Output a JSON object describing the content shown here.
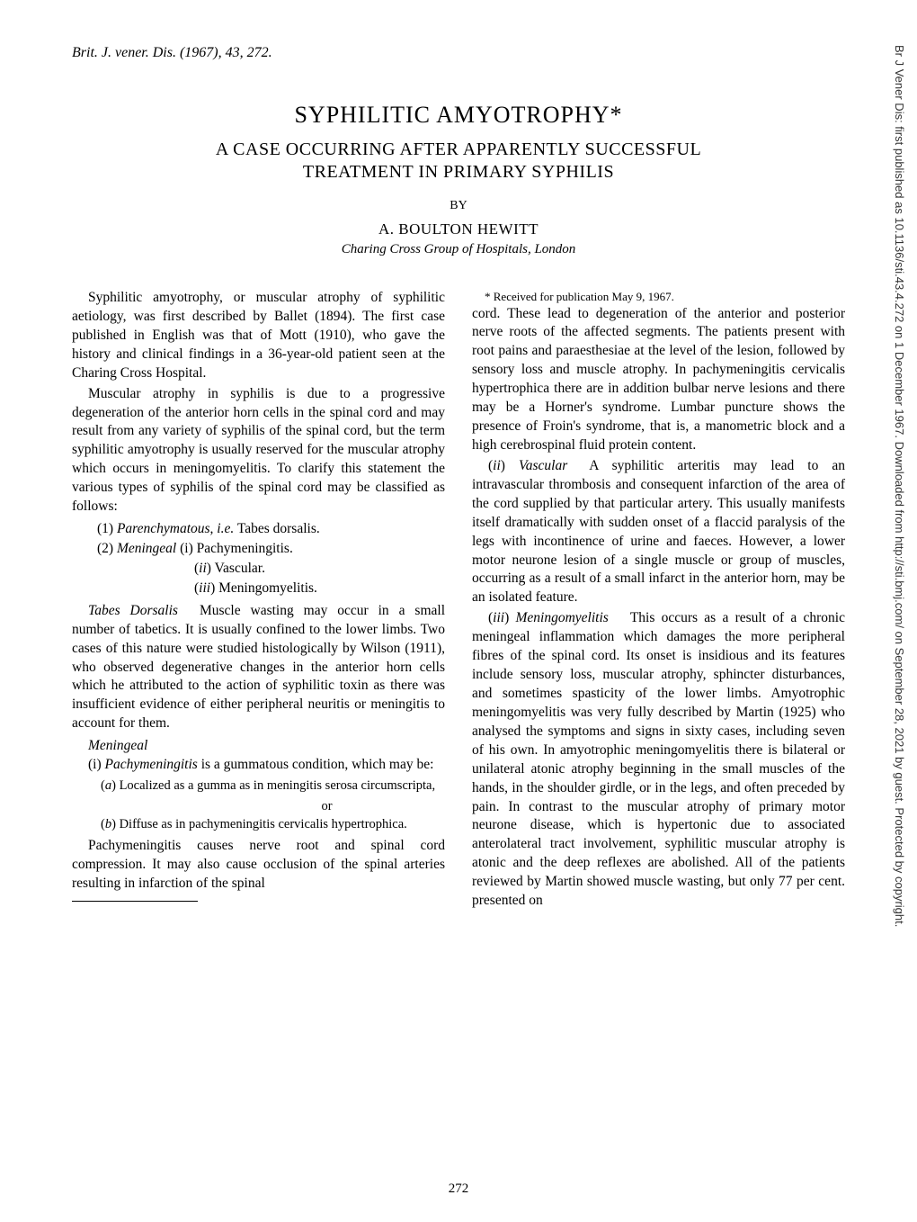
{
  "sidebar": {
    "text": "Br J Vener Dis: first published as 10.1136/sti.43.4.272 on 1 December 1967. Downloaded from http://sti.bmj.com/ on September 28, 2021 by guest. Protected by copyright."
  },
  "header": {
    "citation": "Brit. J. vener. Dis. (1967), 43, 272."
  },
  "title": {
    "main": "SYPHILITIC AMYOTROPHY*",
    "sub1": "A CASE OCCURRING AFTER APPARENTLY SUCCESSFUL",
    "sub2": "TREATMENT IN PRIMARY SYPHILIS",
    "by": "BY",
    "author": "A. BOULTON HEWITT",
    "affiliation": "Charing Cross Group of Hospitals, London"
  },
  "body": {
    "p1": "Syphilitic amyotrophy, or muscular atrophy of syphilitic aetiology, was first described by Ballet (1894). The first case published in English was that of Mott (1910), who gave the history and clinical findings in a 36-year-old patient seen at the Charing Cross Hospital.",
    "p2": "Muscular atrophy in syphilis is due to a progressive degeneration of the anterior horn cells in the spinal cord and may result from any variety of syphilis of the spinal cord, but the term syphilitic amyotrophy is usually reserved for the muscular atrophy which occurs in meningomyelitis. To clarify this statement the various types of syphilis of the spinal cord may be classified as follows:",
    "class1_prefix": "(1) ",
    "class1_italic": "Parenchymatous, i.e.",
    "class1_rest": " Tabes dorsalis.",
    "class2_prefix": "(2) ",
    "class2_italic": "Meningeal",
    "class2_rest": "   (i) Pachymeningitis.",
    "class2b_prefix": "(ii) ",
    "class2b_rest": "Vascular.",
    "class2c_prefix": "(iii) ",
    "class2c_rest": "Meningomyelitis.",
    "tabes_heading": "Tabes Dorsalis",
    "tabes_text": "Muscle wasting may occur in a small number of tabetics. It is usually confined to the lower limbs. Two cases of this nature were studied histologically by Wilson (1911), who observed degenerative changes in the anterior horn cells which he attributed to the action of syphilitic toxin as there was insufficient evidence of either peripheral neuritis or meningitis to account for them.",
    "meningeal_heading": "Meningeal",
    "pachy_prefix": "(i) ",
    "pachy_italic": "Pachymeningitis",
    "pachy_text": " is a gummatous condition, which may be:",
    "sublist_a_prefix": "(a) ",
    "sublist_a": "Localized as a gumma as in meningitis serosa circumscripta,",
    "or_text": "or",
    "sublist_b_prefix": "(b) ",
    "sublist_b": "Diffuse as in pachymeningitis cervicalis hypertrophica.",
    "p3": "Pachymeningitis causes nerve root and spinal cord compression. It may also cause occlusion of the spinal arteries resulting in infarction of the spinal",
    "footnote": "* Received for publication May 9, 1967.",
    "p4": "cord. These lead to degeneration of the anterior and posterior nerve roots of the affected segments. The patients present with root pains and paraesthesiae at the level of the lesion, followed by sensory loss and muscle atrophy. In pachymeningitis cervicalis hypertrophica there are in addition bulbar nerve lesions and there may be a Horner's syndrome. Lumbar puncture shows the presence of Froin's syndrome, that is, a manometric block and a high cerebrospinal fluid protein content.",
    "vascular_prefix": "(ii) ",
    "vascular_italic": "Vascular",
    "vascular_text": "A syphilitic arteritis may lead to an intravascular thrombosis and consequent infarction of the area of the cord supplied by that particular artery. This usually manifests itself dramatically with sudden onset of a flaccid paralysis of the legs with incontinence of urine and faeces. However, a lower motor neurone lesion of a single muscle or group of muscles, occurring as a result of a small infarct in the anterior horn, may be an isolated feature.",
    "meningo_prefix": "(iii) ",
    "meningo_italic": "Meningomyelitis",
    "meningo_text": "This occurs as a result of a chronic meningeal inflammation which damages the more peripheral fibres of the spinal cord. Its onset is insidious and its features include sensory loss, muscular atrophy, sphincter disturbances, and sometimes spasticity of the lower limbs. Amyotrophic meningomyelitis was very fully described by Martin (1925) who analysed the symptoms and signs in sixty cases, including seven of his own. In amyotrophic meningomyelitis there is bilateral or unilateral atonic atrophy beginning in the small muscles of the hands, in the shoulder girdle, or in the legs, and often preceded by pain. In contrast to the muscular atrophy of primary motor neurone disease, which is hypertonic due to associated anterolateral tract involvement, syphilitic muscular atrophy is atonic and the deep reflexes are abolished. All of the patients reviewed by Martin showed muscle wasting, but only 77 per cent. presented on"
  },
  "page_number": "272"
}
